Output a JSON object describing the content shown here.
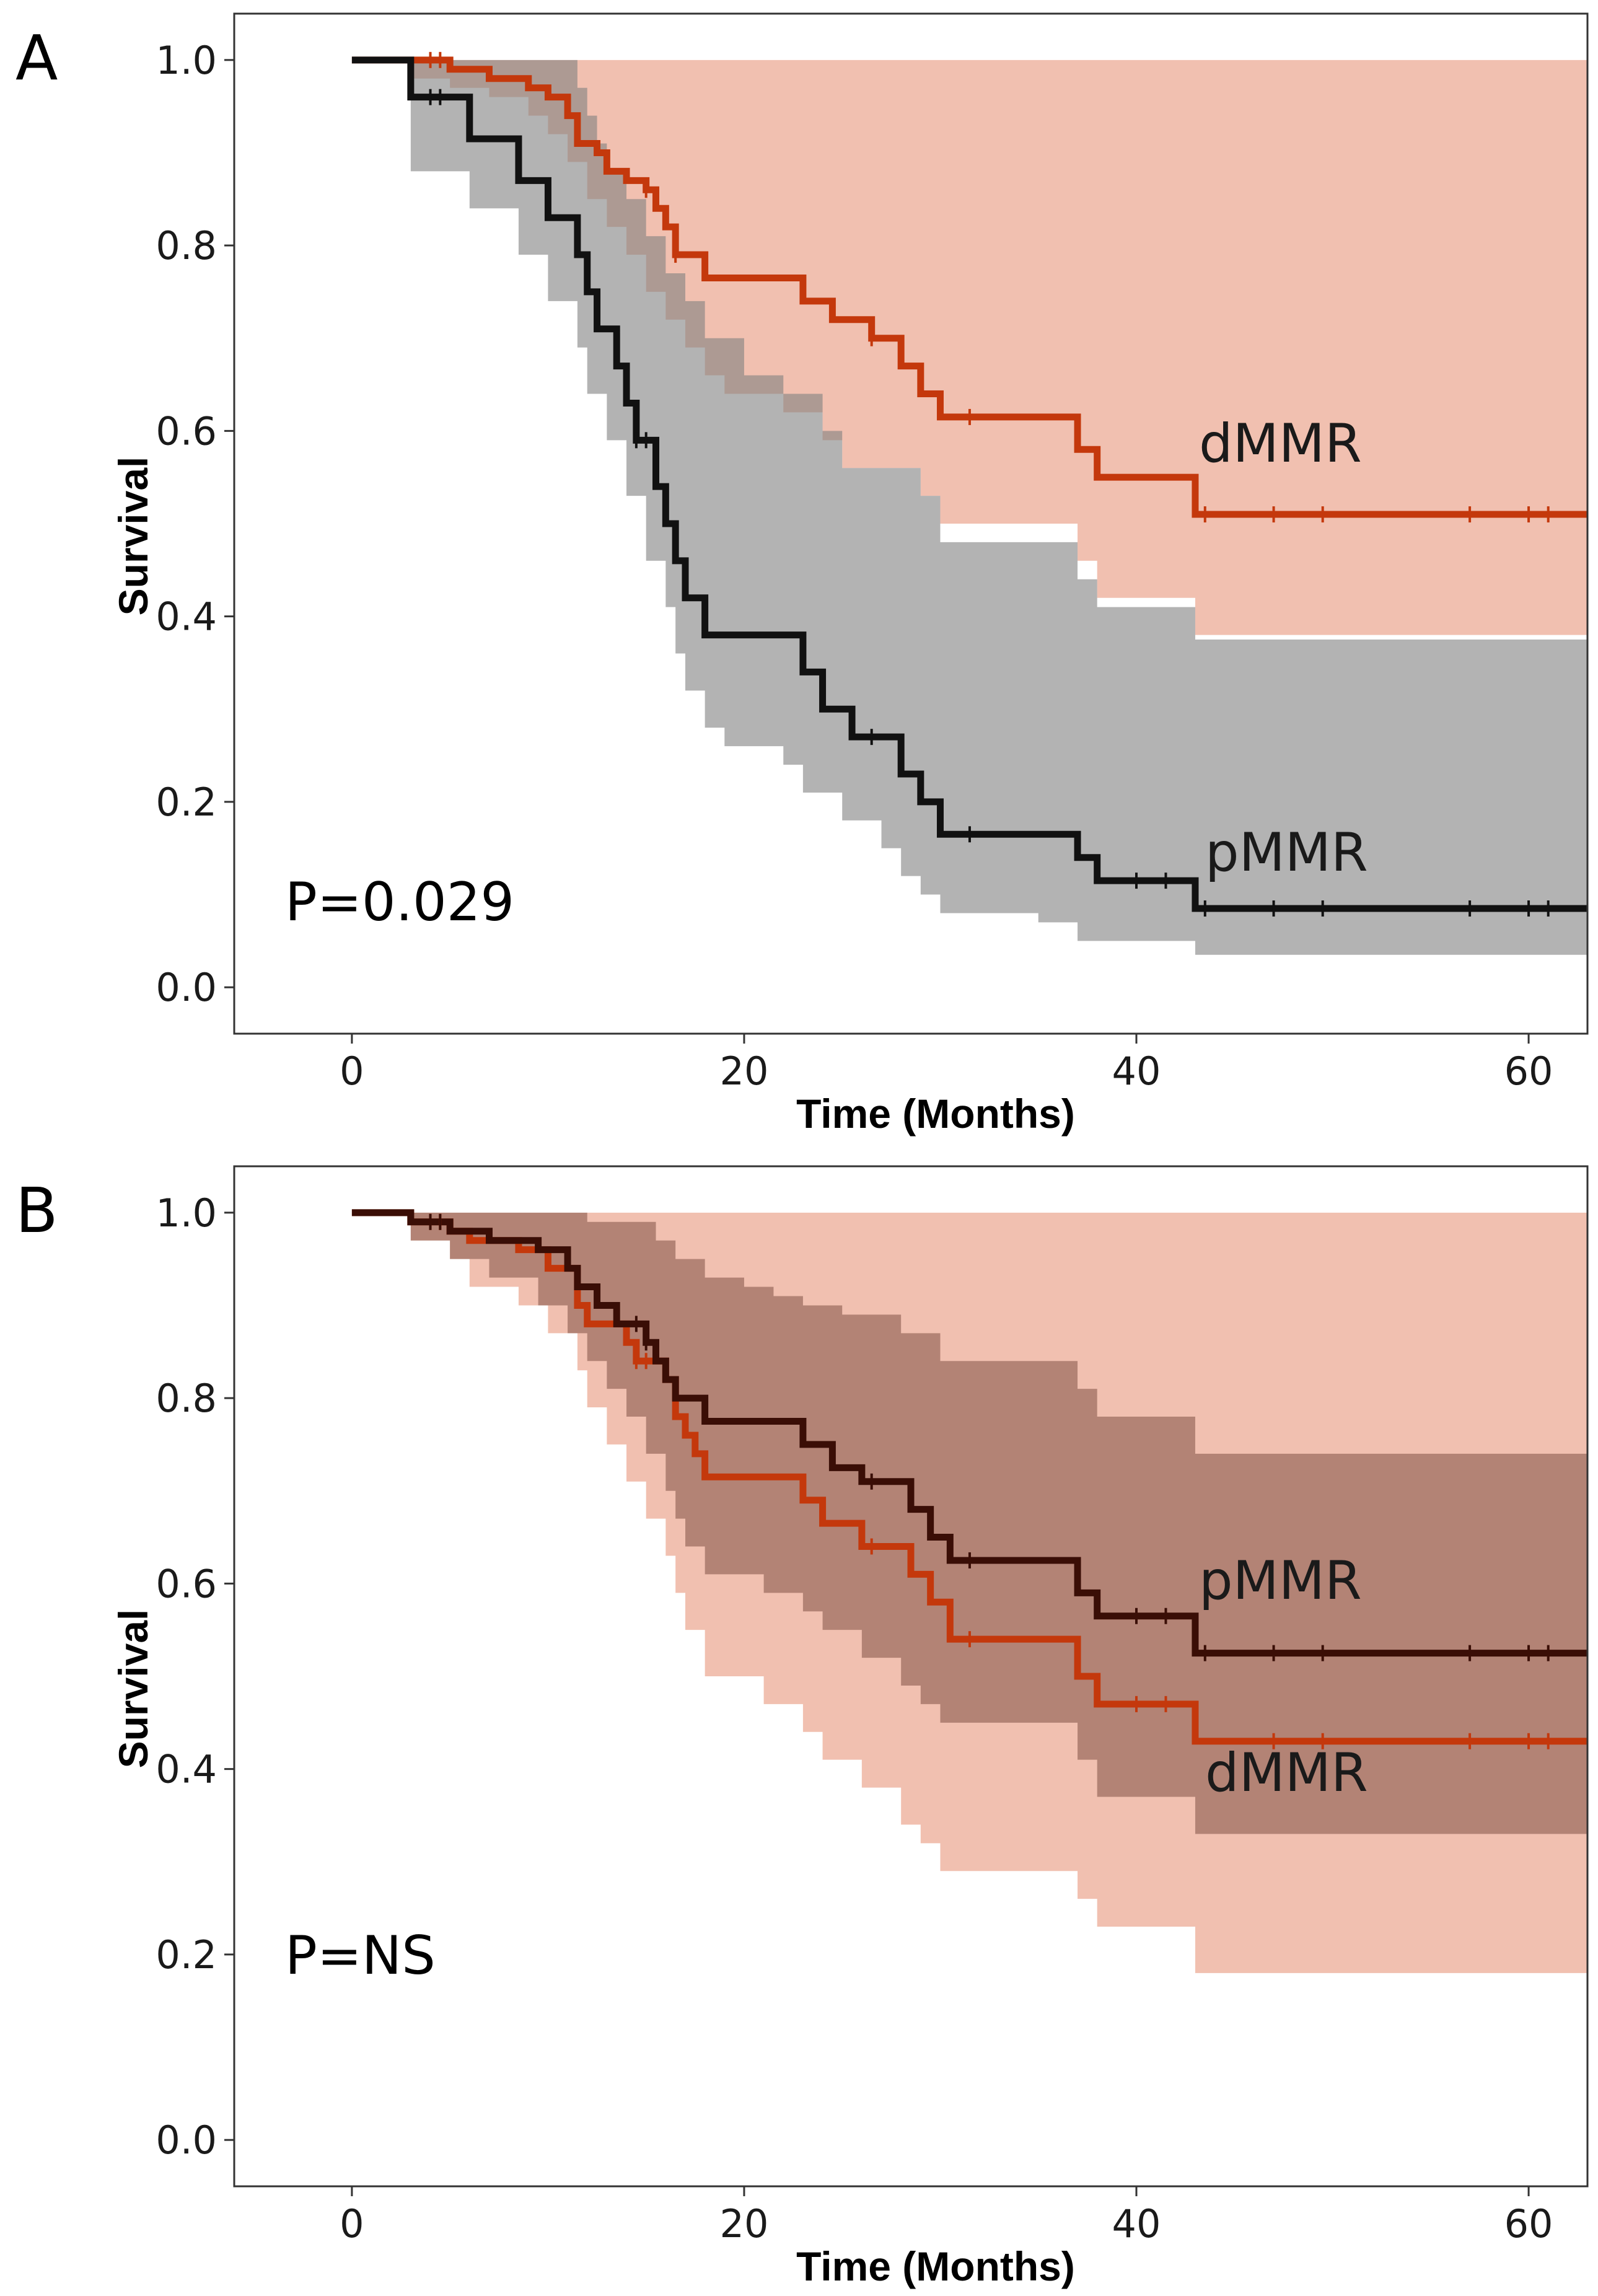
{
  "chart_data": [
    {
      "panel": "A",
      "type": "line",
      "subtype": "kaplan-meier",
      "xlabel": "Time (Months)",
      "ylabel": "Survival",
      "xlim": [
        -6,
        63
      ],
      "ylim": [
        -0.05,
        1.05
      ],
      "xticks": [
        0,
        20,
        40,
        60
      ],
      "yticks": [
        0.0,
        0.2,
        0.4,
        0.6,
        0.8,
        1.0
      ],
      "grid": false,
      "annotation": "P=0.029",
      "series": [
        {
          "name": "dMMR",
          "label": "dMMR",
          "color": "#c4380c",
          "band_color": "#e8967c",
          "band_opacity": 0.6,
          "steps": [
            [
              0,
              1.0
            ],
            [
              3,
              1.0
            ],
            [
              5,
              0.99
            ],
            [
              7,
              0.98
            ],
            [
              9,
              0.97
            ],
            [
              10,
              0.96
            ],
            [
              11,
              0.94
            ],
            [
              11.5,
              0.91
            ],
            [
              12.5,
              0.9
            ],
            [
              13,
              0.88
            ],
            [
              14,
              0.87
            ],
            [
              15,
              0.86
            ],
            [
              15.5,
              0.84
            ],
            [
              16,
              0.82
            ],
            [
              16.5,
              0.79
            ],
            [
              18,
              0.765
            ],
            [
              23,
              0.74
            ],
            [
              24.5,
              0.72
            ],
            [
              26.5,
              0.7
            ],
            [
              28,
              0.67
            ],
            [
              29,
              0.64
            ],
            [
              30,
              0.615
            ],
            [
              37,
              0.58
            ],
            [
              38,
              0.55
            ],
            [
              43,
              0.51
            ],
            [
              63,
              0.51
            ]
          ],
          "upper_steps": [
            [
              0,
              1.0
            ],
            [
              63,
              1.0
            ]
          ],
          "lower_steps": [
            [
              0,
              1.0
            ],
            [
              3,
              0.98
            ],
            [
              5,
              0.97
            ],
            [
              7,
              0.96
            ],
            [
              9,
              0.94
            ],
            [
              10,
              0.92
            ],
            [
              11,
              0.89
            ],
            [
              12,
              0.85
            ],
            [
              13,
              0.82
            ],
            [
              14,
              0.79
            ],
            [
              15,
              0.75
            ],
            [
              16,
              0.72
            ],
            [
              17,
              0.69
            ],
            [
              18,
              0.66
            ],
            [
              19,
              0.64
            ],
            [
              22,
              0.62
            ],
            [
              24,
              0.59
            ],
            [
              25,
              0.56
            ],
            [
              29,
              0.53
            ],
            [
              30,
              0.5
            ],
            [
              37,
              0.46
            ],
            [
              38,
              0.42
            ],
            [
              43,
              0.38
            ],
            [
              63,
              0.38
            ]
          ],
          "censors": [
            4,
            4.5,
            15,
            16.5,
            26.5,
            31.5,
            43.5,
            47,
            49.5,
            57,
            60,
            61
          ]
        },
        {
          "name": "pMMR",
          "label": "pMMR",
          "color": "#111111",
          "band_color": "#808080",
          "band_opacity": 0.6,
          "steps": [
            [
              0,
              1.0
            ],
            [
              3,
              0.96
            ],
            [
              6,
              0.915
            ],
            [
              8.5,
              0.87
            ],
            [
              10,
              0.83
            ],
            [
              11.5,
              0.79
            ],
            [
              12,
              0.75
            ],
            [
              12.5,
              0.71
            ],
            [
              13.5,
              0.67
            ],
            [
              14,
              0.63
            ],
            [
              14.5,
              0.59
            ],
            [
              15.5,
              0.54
            ],
            [
              16,
              0.5
            ],
            [
              16.5,
              0.46
            ],
            [
              17,
              0.42
            ],
            [
              18,
              0.38
            ],
            [
              23,
              0.34
            ],
            [
              24,
              0.3
            ],
            [
              25.5,
              0.27
            ],
            [
              28,
              0.23
            ],
            [
              29,
              0.2
            ],
            [
              30,
              0.165
            ],
            [
              37,
              0.14
            ],
            [
              38,
              0.115
            ],
            [
              43,
              0.085
            ],
            [
              63,
              0.085
            ]
          ],
          "upper_steps": [
            [
              0,
              1.0
            ],
            [
              11.5,
              0.97
            ],
            [
              12,
              0.94
            ],
            [
              12.5,
              0.91
            ],
            [
              13,
              0.88
            ],
            [
              14,
              0.85
            ],
            [
              15,
              0.81
            ],
            [
              16,
              0.77
            ],
            [
              17,
              0.74
            ],
            [
              18,
              0.7
            ],
            [
              20,
              0.66
            ],
            [
              22,
              0.64
            ],
            [
              24,
              0.6
            ],
            [
              25,
              0.56
            ],
            [
              29,
              0.53
            ],
            [
              30,
              0.48
            ],
            [
              37,
              0.44
            ],
            [
              38,
              0.41
            ],
            [
              43,
              0.375
            ],
            [
              63,
              0.375
            ]
          ],
          "lower_steps": [
            [
              0,
              1.0
            ],
            [
              3,
              0.88
            ],
            [
              6,
              0.84
            ],
            [
              8.5,
              0.79
            ],
            [
              10,
              0.74
            ],
            [
              11.5,
              0.69
            ],
            [
              12,
              0.64
            ],
            [
              13,
              0.59
            ],
            [
              14,
              0.53
            ],
            [
              15,
              0.46
            ],
            [
              16,
              0.41
            ],
            [
              16.5,
              0.36
            ],
            [
              17,
              0.32
            ],
            [
              18,
              0.28
            ],
            [
              19,
              0.26
            ],
            [
              22,
              0.24
            ],
            [
              23,
              0.21
            ],
            [
              25,
              0.18
            ],
            [
              27,
              0.15
            ],
            [
              28,
              0.12
            ],
            [
              29,
              0.1
            ],
            [
              30,
              0.08
            ],
            [
              35,
              0.07
            ],
            [
              37,
              0.05
            ],
            [
              43,
              0.035
            ],
            [
              63,
              0.035
            ]
          ],
          "censors": [
            4,
            4.5,
            14.5,
            15,
            26.5,
            31.5,
            40,
            41.5,
            43.5,
            47,
            49.5,
            57,
            60,
            61
          ]
        }
      ]
    },
    {
      "panel": "B",
      "type": "line",
      "subtype": "kaplan-meier",
      "xlabel": "Time (Months)",
      "ylabel": "Survival",
      "xlim": [
        -6,
        63
      ],
      "ylim": [
        -0.05,
        1.05
      ],
      "xticks": [
        0,
        20,
        40,
        60
      ],
      "yticks": [
        0.0,
        0.2,
        0.4,
        0.6,
        0.8,
        1.0
      ],
      "grid": false,
      "annotation": "P=NS",
      "series": [
        {
          "name": "dMMR",
          "label": "dMMR",
          "color": "#c4380c",
          "band_color": "#e8967c",
          "band_opacity": 0.6,
          "steps": [
            [
              0,
              1.0
            ],
            [
              3,
              0.99
            ],
            [
              5,
              0.98
            ],
            [
              6,
              0.97
            ],
            [
              8.5,
              0.96
            ],
            [
              10,
              0.94
            ],
            [
              11.5,
              0.9
            ],
            [
              12,
              0.88
            ],
            [
              14,
              0.86
            ],
            [
              14.5,
              0.84
            ],
            [
              16,
              0.82
            ],
            [
              16.5,
              0.78
            ],
            [
              17,
              0.76
            ],
            [
              17.5,
              0.74
            ],
            [
              18,
              0.715
            ],
            [
              23,
              0.69
            ],
            [
              24,
              0.665
            ],
            [
              26,
              0.64
            ],
            [
              28.5,
              0.61
            ],
            [
              29.5,
              0.58
            ],
            [
              30.5,
              0.54
            ],
            [
              37,
              0.5
            ],
            [
              38,
              0.47
            ],
            [
              43,
              0.43
            ],
            [
              63,
              0.43
            ]
          ],
          "upper_steps": [
            [
              0,
              1.0
            ],
            [
              63,
              1.0
            ]
          ],
          "lower_steps": [
            [
              0,
              1.0
            ],
            [
              3,
              0.97
            ],
            [
              5,
              0.95
            ],
            [
              6,
              0.92
            ],
            [
              8.5,
              0.9
            ],
            [
              10,
              0.87
            ],
            [
              11.5,
              0.83
            ],
            [
              12,
              0.79
            ],
            [
              13,
              0.75
            ],
            [
              14,
              0.71
            ],
            [
              15,
              0.67
            ],
            [
              16,
              0.63
            ],
            [
              16.5,
              0.59
            ],
            [
              17,
              0.55
            ],
            [
              18,
              0.5
            ],
            [
              21,
              0.47
            ],
            [
              23,
              0.44
            ],
            [
              24,
              0.41
            ],
            [
              26,
              0.38
            ],
            [
              28,
              0.34
            ],
            [
              29,
              0.32
            ],
            [
              30,
              0.29
            ],
            [
              37,
              0.26
            ],
            [
              38,
              0.23
            ],
            [
              43,
              0.18
            ],
            [
              63,
              0.18
            ]
          ],
          "censors": [
            4,
            4.5,
            14.5,
            15,
            26.5,
            31.5,
            40,
            41.5,
            47,
            49.5,
            57,
            60,
            61
          ]
        },
        {
          "name": "pMMR",
          "label": "pMMR",
          "color": "#3a0e06",
          "band_color": "#8a5a4e",
          "band_opacity": 0.6,
          "steps": [
            [
              0,
              1.0
            ],
            [
              3,
              0.99
            ],
            [
              5,
              0.98
            ],
            [
              7,
              0.97
            ],
            [
              9.5,
              0.96
            ],
            [
              11,
              0.94
            ],
            [
              11.5,
              0.92
            ],
            [
              12.5,
              0.9
            ],
            [
              13.5,
              0.88
            ],
            [
              15,
              0.86
            ],
            [
              15.5,
              0.84
            ],
            [
              16,
              0.82
            ],
            [
              16.5,
              0.8
            ],
            [
              18,
              0.775
            ],
            [
              23,
              0.75
            ],
            [
              24.5,
              0.725
            ],
            [
              26,
              0.71
            ],
            [
              28.5,
              0.68
            ],
            [
              29.5,
              0.65
            ],
            [
              30.5,
              0.625
            ],
            [
              37,
              0.59
            ],
            [
              38,
              0.565
            ],
            [
              43,
              0.525
            ],
            [
              63,
              0.525
            ]
          ],
          "upper_steps": [
            [
              0,
              1.0
            ],
            [
              12,
              0.99
            ],
            [
              15.5,
              0.97
            ],
            [
              16.5,
              0.95
            ],
            [
              18,
              0.93
            ],
            [
              20,
              0.92
            ],
            [
              21.5,
              0.91
            ],
            [
              23,
              0.9
            ],
            [
              25,
              0.89
            ],
            [
              28,
              0.87
            ],
            [
              30,
              0.84
            ],
            [
              37,
              0.81
            ],
            [
              38,
              0.78
            ],
            [
              43,
              0.74
            ],
            [
              63,
              0.74
            ]
          ],
          "lower_steps": [
            [
              0,
              1.0
            ],
            [
              3,
              0.97
            ],
            [
              5,
              0.95
            ],
            [
              7,
              0.93
            ],
            [
              9.5,
              0.9
            ],
            [
              11,
              0.87
            ],
            [
              12,
              0.84
            ],
            [
              13,
              0.81
            ],
            [
              14,
              0.78
            ],
            [
              15,
              0.74
            ],
            [
              16,
              0.7
            ],
            [
              16.5,
              0.67
            ],
            [
              17,
              0.64
            ],
            [
              18,
              0.61
            ],
            [
              21,
              0.59
            ],
            [
              23,
              0.57
            ],
            [
              24,
              0.55
            ],
            [
              26,
              0.52
            ],
            [
              28,
              0.49
            ],
            [
              29,
              0.47
            ],
            [
              30,
              0.45
            ],
            [
              37,
              0.41
            ],
            [
              38,
              0.37
            ],
            [
              43,
              0.33
            ],
            [
              63,
              0.33
            ]
          ],
          "censors": [
            4,
            4.5,
            14.5,
            15,
            26.5,
            31.5,
            40,
            41.5,
            43.5,
            47,
            49.5,
            57,
            60,
            61
          ]
        }
      ]
    }
  ]
}
